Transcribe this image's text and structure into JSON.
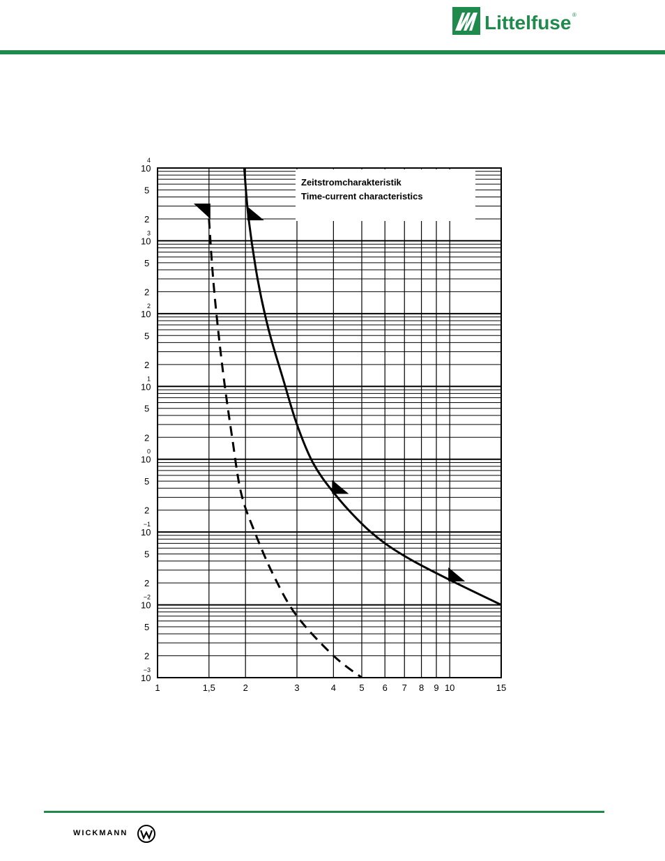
{
  "header": {
    "brand": "Littelfuse",
    "brand_mark": "®",
    "brand_color": "#1f8a4c"
  },
  "footer": {
    "brand": "WICKMANN",
    "icon": "wickmann-w-logo-icon"
  },
  "chart_data": {
    "type": "line",
    "title": "Zeitstromcharakteristik",
    "subtitle": "Time-current characteristics",
    "x_scale": "log",
    "y_scale": "log",
    "xlim": [
      1,
      15
    ],
    "ylim": [
      0.001,
      10000
    ],
    "x_ticks": [
      {
        "value": 1,
        "label": "1"
      },
      {
        "value": 1.5,
        "label": "1,5"
      },
      {
        "value": 2,
        "label": "2"
      },
      {
        "value": 3,
        "label": "3"
      },
      {
        "value": 4,
        "label": "4"
      },
      {
        "value": 5,
        "label": "5"
      },
      {
        "value": 6,
        "label": "6"
      },
      {
        "value": 7,
        "label": "7"
      },
      {
        "value": 8,
        "label": "8"
      },
      {
        "value": 9,
        "label": "9"
      },
      {
        "value": 10,
        "label": "10"
      },
      {
        "value": 15,
        "label": "15"
      }
    ],
    "y_decades": [
      {
        "value": 10000,
        "base": "10",
        "exp": "4"
      },
      {
        "value": 1000,
        "base": "10",
        "exp": "3"
      },
      {
        "value": 100,
        "base": "10",
        "exp": "2"
      },
      {
        "value": 10,
        "base": "10",
        "exp": "1"
      },
      {
        "value": 1,
        "base": "10",
        "exp": "0"
      },
      {
        "value": 0.1,
        "base": "10",
        "exp": "−1"
      },
      {
        "value": 0.01,
        "base": "10",
        "exp": "−2"
      },
      {
        "value": 0.001,
        "base": "10",
        "exp": "−3"
      }
    ],
    "y_minor_labels": [
      "5",
      "2"
    ],
    "grid": true,
    "legend": "top-right",
    "series": [
      {
        "style": "solid",
        "points": [
          [
            1.98,
            10000
          ],
          [
            2.05,
            2000
          ],
          [
            2.2,
            300
          ],
          [
            2.4,
            60
          ],
          [
            2.7,
            12
          ],
          [
            3.0,
            3
          ],
          [
            3.4,
            0.9
          ],
          [
            4.0,
            0.35
          ],
          [
            5.0,
            0.13
          ],
          [
            6.0,
            0.07
          ],
          [
            7.5,
            0.04
          ],
          [
            10,
            0.022
          ],
          [
            15,
            0.01
          ]
        ],
        "arrows": [
          [
            2.05,
            2000
          ],
          [
            4.0,
            0.35
          ],
          [
            10,
            0.022
          ]
        ]
      },
      {
        "style": "dashed",
        "points": [
          [
            1.5,
            2000
          ],
          [
            1.55,
            300
          ],
          [
            1.62,
            50
          ],
          [
            1.7,
            10
          ],
          [
            1.8,
            2
          ],
          [
            1.93,
            0.35
          ],
          [
            2.15,
            0.1
          ],
          [
            2.5,
            0.025
          ],
          [
            3.0,
            0.007
          ],
          [
            4.0,
            0.002
          ],
          [
            5.0,
            0.001
          ]
        ],
        "arrows": [
          [
            1.5,
            2000
          ]
        ]
      }
    ]
  }
}
